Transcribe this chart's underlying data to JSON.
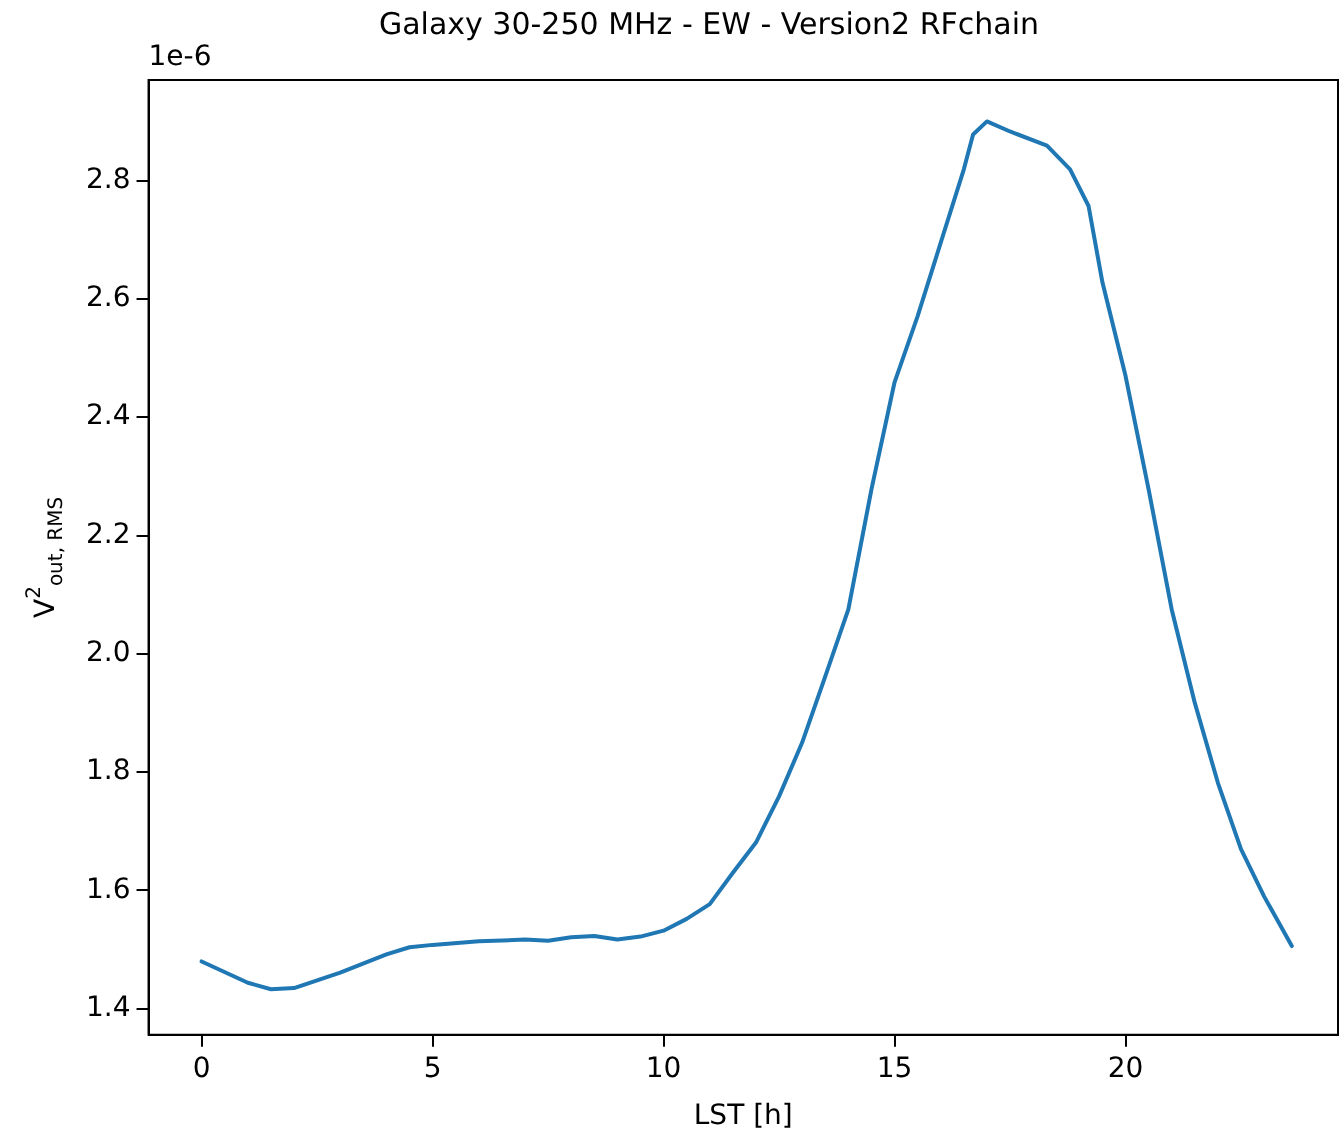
{
  "chart_data": {
    "type": "line",
    "title": "Galaxy 30-250 MHz - EW - Version2 RFchain",
    "xlabel": "LST [h]",
    "ylabel": "V$^{2}$$_{out, RMS}$",
    "annotations": [
      "1e-6"
    ],
    "x": [
      0,
      1,
      1.5,
      2,
      3,
      4,
      4.5,
      5,
      6,
      7,
      7.5,
      8,
      8.5,
      9,
      9.5,
      10,
      10.5,
      11,
      11.5,
      12,
      12.5,
      13,
      13.5,
      14,
      14.5,
      15,
      15.5,
      16,
      16.5,
      16.7,
      17,
      17.5,
      18.3,
      18.8,
      19.2,
      19.5,
      20,
      20.5,
      21,
      21.5,
      22,
      22.5,
      23,
      23.6
    ],
    "series": [
      {
        "color": "#1f77b4",
        "values": [
          1.48,
          1.444,
          1.433,
          1.435,
          1.461,
          1.492,
          1.504,
          1.508,
          1.514,
          1.517,
          1.515,
          1.521,
          1.523,
          1.517,
          1.522,
          1.532,
          1.552,
          1.577,
          1.63,
          1.681,
          1.759,
          1.85,
          1.962,
          2.075,
          2.278,
          2.459,
          2.571,
          2.695,
          2.819,
          2.878,
          2.9,
          2.883,
          2.859,
          2.819,
          2.757,
          2.628,
          2.47,
          2.278,
          2.075,
          1.917,
          1.782,
          1.67,
          1.59,
          1.506
        ]
      }
    ],
    "xlim": [
      -1.15,
      24.6
    ],
    "ylim": [
      1.356,
      2.97
    ],
    "xticks": [
      0,
      5,
      10,
      15,
      20
    ],
    "yticks": [
      1.4,
      1.6,
      1.8,
      {
        "value": 2,
        "label": "2.0"
      },
      2.2,
      2.4,
      2.6,
      2.8
    ],
    "grid": false,
    "legend": false,
    "marker": "none",
    "line_style": "solid"
  }
}
